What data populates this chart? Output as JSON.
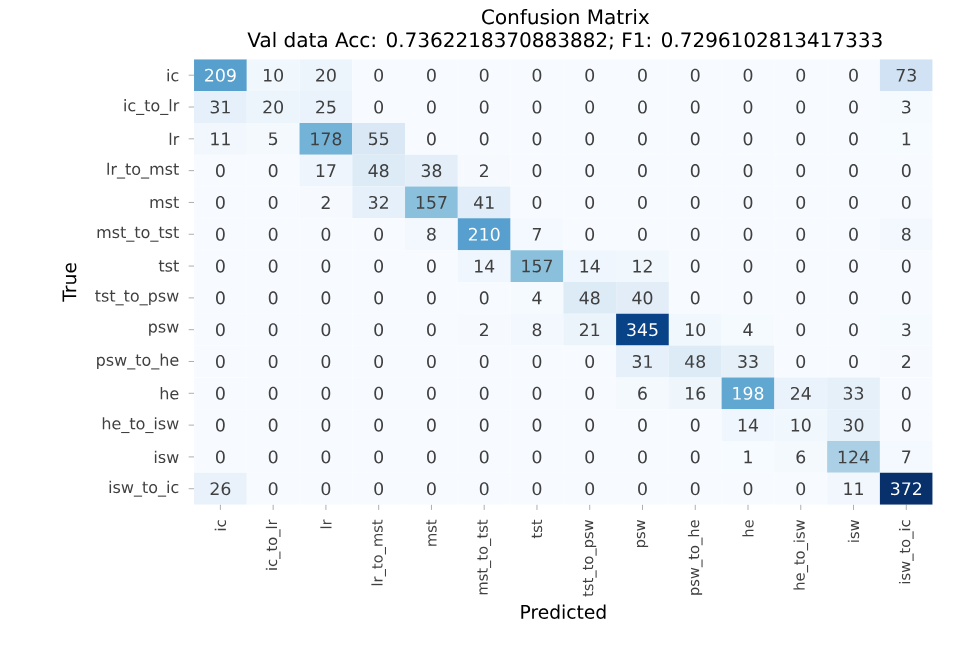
{
  "chart_data": {
    "type": "heatmap",
    "title": "Confusion Matrix",
    "subtitle": "Val data Acc: 0.7362218370883882; F1: 0.7296102813417333",
    "xlabel": "Predicted",
    "ylabel": "True",
    "categories": [
      "ic",
      "ic_to_lr",
      "lr",
      "lr_to_mst",
      "mst",
      "mst_to_tst",
      "tst",
      "tst_to_psw",
      "psw",
      "psw_to_he",
      "he",
      "he_to_isw",
      "isw",
      "isw_to_ic"
    ],
    "y_categories": [
      "ic",
      "ic_to_lr",
      "lr",
      "lr_to_mst",
      "mst",
      "mst_to_tst",
      "tst",
      "tst_to_psw",
      "psw",
      "psw_to_he",
      "he",
      "he_to_isw",
      "isw",
      "isw_to_ic"
    ],
    "cells": [
      [
        209,
        10,
        20,
        0,
        0,
        0,
        0,
        0,
        0,
        0,
        0,
        0,
        0,
        73
      ],
      [
        31,
        20,
        25,
        0,
        0,
        0,
        0,
        0,
        0,
        0,
        0,
        0,
        0,
        3
      ],
      [
        11,
        5,
        178,
        55,
        0,
        0,
        0,
        0,
        0,
        0,
        0,
        0,
        0,
        1
      ],
      [
        0,
        0,
        17,
        48,
        38,
        2,
        0,
        0,
        0,
        0,
        0,
        0,
        0,
        0
      ],
      [
        0,
        0,
        2,
        32,
        157,
        41,
        0,
        0,
        0,
        0,
        0,
        0,
        0,
        0
      ],
      [
        0,
        0,
        0,
        0,
        8,
        210,
        7,
        0,
        0,
        0,
        0,
        0,
        0,
        8
      ],
      [
        0,
        0,
        0,
        0,
        0,
        14,
        157,
        14,
        12,
        0,
        0,
        0,
        0,
        0
      ],
      [
        0,
        0,
        0,
        0,
        0,
        0,
        4,
        48,
        40,
        0,
        0,
        0,
        0,
        0
      ],
      [
        0,
        0,
        0,
        0,
        0,
        2,
        8,
        21,
        345,
        10,
        4,
        0,
        0,
        3
      ],
      [
        0,
        0,
        0,
        0,
        0,
        0,
        0,
        0,
        31,
        48,
        33,
        0,
        0,
        2
      ],
      [
        0,
        0,
        0,
        0,
        0,
        0,
        0,
        0,
        6,
        16,
        198,
        24,
        33,
        0
      ],
      [
        0,
        0,
        0,
        0,
        0,
        0,
        0,
        0,
        0,
        0,
        14,
        10,
        30,
        0
      ],
      [
        0,
        0,
        0,
        0,
        0,
        0,
        0,
        0,
        0,
        0,
        1,
        6,
        124,
        7
      ],
      [
        26,
        0,
        0,
        0,
        0,
        0,
        0,
        0,
        0,
        0,
        0,
        0,
        11,
        372
      ]
    ],
    "data_labels": true,
    "grid": false
  }
}
